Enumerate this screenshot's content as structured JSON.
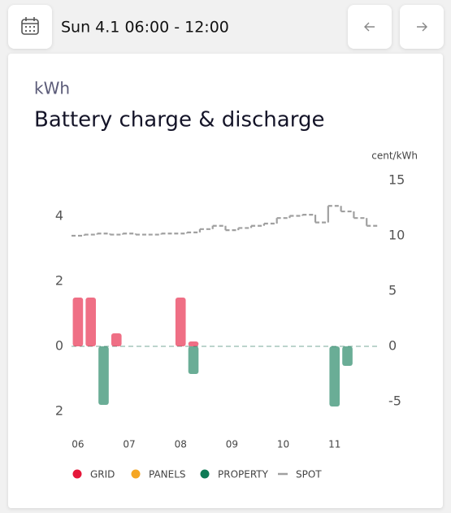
{
  "header": {
    "date_range": "Sun 4.1 06:00 - 12:00"
  },
  "chart_data": {
    "type": "bar",
    "unit_label": "kWh",
    "title": "Battery charge & discharge",
    "y2_label": "cent/kWh",
    "x": [
      6,
      6.25,
      6.5,
      6.75,
      8,
      8.25,
      11,
      11.25
    ],
    "xlim": [
      5.875,
      11.875
    ],
    "xticks": [
      {
        "value": 6,
        "label": "06"
      },
      {
        "value": 7,
        "label": "07"
      },
      {
        "value": 8,
        "label": "08"
      },
      {
        "value": 9,
        "label": "09"
      },
      {
        "value": 10,
        "label": "10"
      },
      {
        "value": 11,
        "label": "11"
      }
    ],
    "ylim": [
      -2,
      5.1
    ],
    "yticks": [
      {
        "value": -2,
        "label": "2"
      },
      0,
      2,
      4
    ],
    "y2lim": [
      -5.9,
      15
    ],
    "y2ticks": [
      -5,
      0,
      5,
      10,
      15
    ],
    "series": [
      {
        "name": "GRID",
        "color": "#e5173a",
        "values": [
          1.5,
          1.5,
          null,
          0.4,
          1.5,
          0.15,
          null,
          null
        ]
      },
      {
        "name": "PANELS",
        "color": "#f5a623",
        "values": [
          null,
          null,
          null,
          null,
          null,
          null,
          null,
          null
        ]
      },
      {
        "name": "PROPERTY",
        "color": "#0f7b56",
        "values": [
          null,
          null,
          -1.8,
          null,
          null,
          -0.85,
          -1.85,
          -0.6
        ]
      },
      {
        "name": "SPOT",
        "color": "#a0a0a0",
        "axis": "y2",
        "style": "dashed",
        "x": [
          5.875,
          6.125,
          6.375,
          6.625,
          6.875,
          7.125,
          7.375,
          7.625,
          7.875,
          8.125,
          8.375,
          8.625,
          8.875,
          9.125,
          9.375,
          9.625,
          9.875,
          10.125,
          10.375,
          10.625,
          10.875,
          11.125,
          11.375,
          11.625
        ],
        "values": [
          10.0,
          10.1,
          10.2,
          10.1,
          10.2,
          10.1,
          10.1,
          10.2,
          10.2,
          10.3,
          10.6,
          10.9,
          10.5,
          10.7,
          10.9,
          11.1,
          11.6,
          11.8,
          11.9,
          11.2,
          12.7,
          12.2,
          11.6,
          10.9
        ]
      }
    ]
  }
}
